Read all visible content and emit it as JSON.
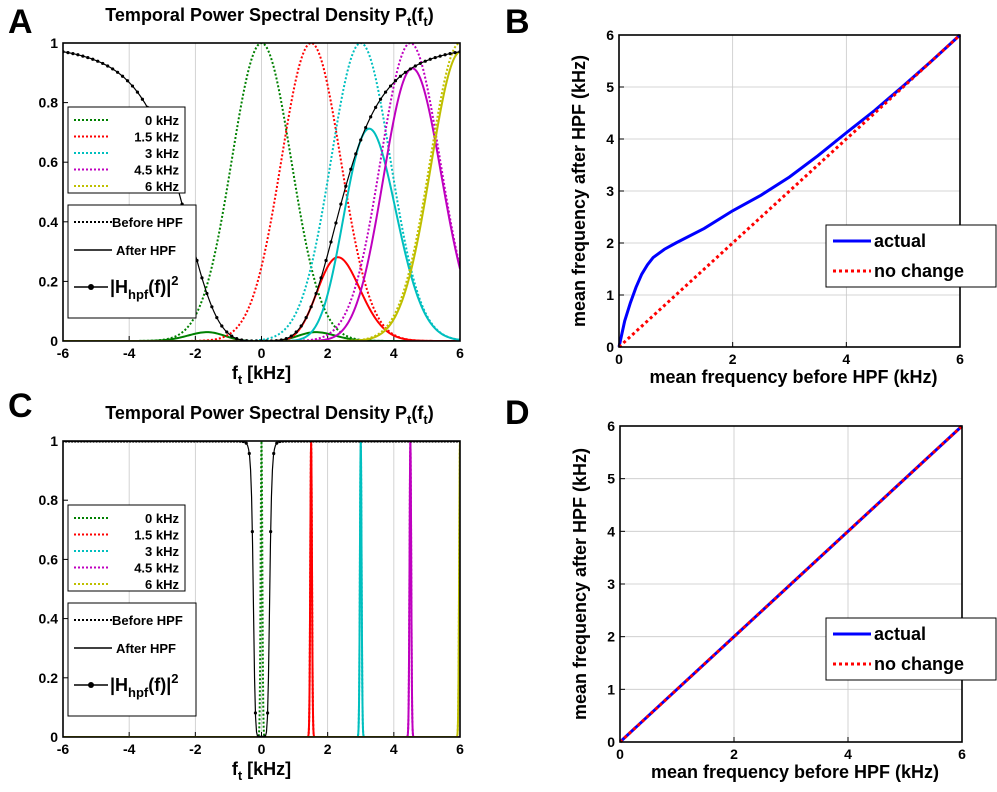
{
  "panels": {
    "A": {
      "label": "A"
    },
    "B": {
      "label": "B"
    },
    "C": {
      "label": "C"
    },
    "D": {
      "label": "D"
    }
  },
  "chart_data": [
    {
      "panel": "A",
      "type": "line",
      "title_main": "Temporal Power Spectral Density P",
      "title_sub": "t",
      "title_arg": "(f",
      "title_arg_sub": "t",
      "title_end": ")",
      "xlabel_main": "f",
      "xlabel_sub": "t",
      "xlabel_unit": " [kHz]",
      "xlim": [
        -6,
        6
      ],
      "ylim": [
        0,
        1
      ],
      "xticks": [
        "-6",
        "-4",
        "-2",
        "0",
        "2",
        "4",
        "6"
      ],
      "yticks": [
        "0",
        "0.2",
        "0.4",
        "0.6",
        "0.8",
        "1"
      ],
      "grid": "vertical",
      "hpf_cutoff_khz": 2.5,
      "series": [
        {
          "name": "0 kHz",
          "center": 0.0,
          "color": "#008000"
        },
        {
          "name": "1.5 kHz",
          "center": 1.5,
          "color": "#ff0000"
        },
        {
          "name": "3 kHz",
          "center": 3.0,
          "color": "#00bfbf"
        },
        {
          "name": "4.5 kHz",
          "center": 4.5,
          "color": "#bf00bf"
        },
        {
          "name": "6 kHz",
          "center": 6.0,
          "color": "#bfbf00"
        }
      ],
      "gaussian_sigma_khz": 0.9,
      "legend_styles": [
        {
          "name": "Before HPF",
          "style": "dotted"
        },
        {
          "name": "After HPF",
          "style": "solid"
        },
        {
          "name": "|H",
          "sub": "hpf",
          "rest": "(f)|",
          "sup": "2",
          "style": "marker"
        }
      ]
    },
    {
      "panel": "B",
      "type": "line",
      "xlabel": "mean frequency before HPF (kHz)",
      "ylabel": "mean frequency after HPF (kHz)",
      "xlim": [
        0,
        6
      ],
      "ylim": [
        0,
        6
      ],
      "xticks": [
        "0",
        "2",
        "4",
        "6"
      ],
      "yticks": [
        "0",
        "1",
        "2",
        "3",
        "4",
        "5",
        "6"
      ],
      "grid": "both",
      "legend_position": "center-right",
      "series": [
        {
          "name": "actual",
          "color": "#0000ff",
          "style": "solid",
          "x": [
            0,
            0.1,
            0.2,
            0.3,
            0.4,
            0.5,
            0.6,
            0.8,
            1.0,
            1.5,
            2.0,
            2.5,
            3.0,
            3.5,
            4.0,
            4.5,
            5.0,
            5.5,
            6.0
          ],
          "y": [
            0,
            0.5,
            0.85,
            1.15,
            1.4,
            1.58,
            1.72,
            1.88,
            2.0,
            2.28,
            2.62,
            2.92,
            3.27,
            3.68,
            4.12,
            4.55,
            5.02,
            5.5,
            6.0
          ]
        },
        {
          "name": "no change",
          "color": "#ff0000",
          "style": "dotted",
          "x": [
            0,
            6
          ],
          "y": [
            0,
            6
          ]
        }
      ]
    },
    {
      "panel": "C",
      "type": "line",
      "title_main": "Temporal Power Spectral Density P",
      "title_sub": "t",
      "title_arg": "(f",
      "title_arg_sub": "t",
      "title_end": ")",
      "xlabel_main": "f",
      "xlabel_sub": "t",
      "xlabel_unit": " [kHz]",
      "xlim": [
        -6,
        6
      ],
      "ylim": [
        0,
        1
      ],
      "xticks": [
        "-6",
        "-4",
        "-2",
        "0",
        "2",
        "4",
        "6"
      ],
      "yticks": [
        "0",
        "0.2",
        "0.4",
        "0.6",
        "0.8",
        "1"
      ],
      "grid": "vertical",
      "series": [
        {
          "name": "0 kHz",
          "center": 0.0,
          "color": "#008000"
        },
        {
          "name": "1.5 kHz",
          "center": 1.5,
          "color": "#ff0000"
        },
        {
          "name": "3 kHz",
          "center": 3.0,
          "color": "#00bfbf"
        },
        {
          "name": "4.5 kHz",
          "center": 4.5,
          "color": "#bf00bf"
        },
        {
          "name": "6 kHz",
          "center": 6.0,
          "color": "#bfbf00"
        }
      ],
      "gaussian_sigma_khz": 0.025,
      "notch_halfwidth_khz": 0.25,
      "legend_styles": [
        {
          "name": "Before HPF",
          "style": "dotted"
        },
        {
          "name": "After HPF",
          "style": "solid"
        },
        {
          "name": "|H",
          "sub": "hpf",
          "rest": "(f)|",
          "sup": "2",
          "style": "marker"
        }
      ]
    },
    {
      "panel": "D",
      "type": "line",
      "xlabel": "mean frequency before HPF (kHz)",
      "ylabel": "mean frequency after HPF (kHz)",
      "xlim": [
        0,
        6
      ],
      "ylim": [
        0,
        6
      ],
      "xticks": [
        "0",
        "2",
        "4",
        "6"
      ],
      "yticks": [
        "0",
        "1",
        "2",
        "3",
        "4",
        "5",
        "6"
      ],
      "grid": "both",
      "legend_position": "bottom-right",
      "series": [
        {
          "name": "actual",
          "color": "#0000ff",
          "style": "solid",
          "x": [
            0,
            6
          ],
          "y": [
            0,
            6
          ]
        },
        {
          "name": "no change",
          "color": "#ff0000",
          "style": "dotted",
          "x": [
            0,
            6
          ],
          "y": [
            0,
            6
          ]
        }
      ]
    }
  ]
}
